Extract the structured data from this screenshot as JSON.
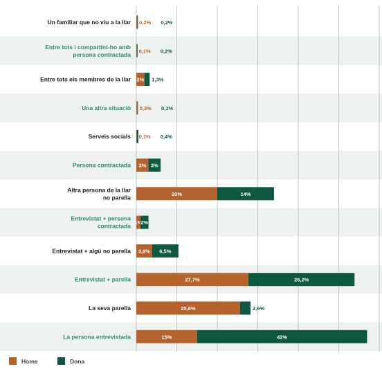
{
  "chart_data": {
    "type": "bar",
    "orientation": "horizontal",
    "stacked": true,
    "grid": true,
    "legend_position": "bottom-left",
    "categories": [
      {
        "label": [
          "Un familiar que no viu a la llar"
        ],
        "color": "#1a1a1a"
      },
      {
        "label": [
          "Entre tots i compartint-ho amb",
          "persona contractada"
        ],
        "color": "#2d8a6e"
      },
      {
        "label": [
          "Entre tots els membres de la llar"
        ],
        "color": "#1a1a1a"
      },
      {
        "label": [
          "Una altra situació"
        ],
        "color": "#2d8a6e"
      },
      {
        "label": [
          "Serveis socials"
        ],
        "color": "#1a1a1a"
      },
      {
        "label": [
          "Persona contractada"
        ],
        "color": "#2d8a6e"
      },
      {
        "label": [
          "Altra persona de la llar",
          "no parella"
        ],
        "color": "#1a1a1a"
      },
      {
        "label": [
          "Entrevistat + persona",
          "contractada"
        ],
        "color": "#2d8a6e"
      },
      {
        "label": [
          "Entrevistat + algú no parella"
        ],
        "color": "#1a1a1a"
      },
      {
        "label": [
          "Entrevistat + parella"
        ],
        "color": "#2d8a6e"
      },
      {
        "label": [
          "La seva parella"
        ],
        "color": "#1a1a1a"
      },
      {
        "label": [
          "La persona entrevistada"
        ],
        "color": "#2d8a6e"
      }
    ],
    "series": [
      {
        "name": "Home",
        "color": "#b5622d",
        "values": [
          0.2,
          0.1,
          2,
          0.3,
          0.1,
          3,
          20,
          1,
          3.9,
          27.7,
          25.6,
          15
        ],
        "labels": [
          "0,2%",
          "0,1%",
          "2%",
          "0,3%",
          "0,1%",
          "3%",
          "20%",
          "1%",
          "3,9%",
          "27,7%",
          "25,6%",
          "15%"
        ],
        "label_outside": [
          true,
          true,
          false,
          true,
          true,
          false,
          false,
          false,
          false,
          false,
          false,
          false
        ]
      },
      {
        "name": "Dona",
        "color": "#0f5840",
        "values": [
          0.2,
          0.2,
          1.3,
          0.1,
          0.4,
          3,
          14,
          2,
          6.5,
          26.2,
          2.6,
          42
        ],
        "labels": [
          "0,2%",
          "0,2%",
          "1,3%",
          "0,1%",
          "0,4%",
          "3%",
          "14%",
          "2%",
          "6,5%",
          "26,2%",
          "2,6%",
          "42%"
        ],
        "label_outside": [
          true,
          true,
          true,
          true,
          true,
          false,
          false,
          false,
          false,
          false,
          true,
          false
        ]
      }
    ],
    "xlim": [
      0,
      60
    ]
  }
}
